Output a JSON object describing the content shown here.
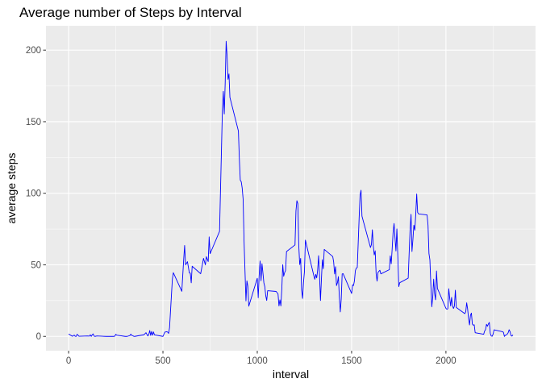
{
  "chart_data": {
    "type": "line",
    "title": "Average number of Steps by Interval",
    "xlabel": "interval",
    "ylabel": "average steps",
    "xlim": [
      -120,
      2475
    ],
    "ylim": [
      -10,
      217
    ],
    "x_ticks": [
      0,
      500,
      1000,
      1500,
      2000
    ],
    "y_ticks": [
      0,
      50,
      100,
      150,
      200
    ],
    "x_tick_labels": [
      "0",
      "500",
      "1000",
      "1500",
      "2000"
    ],
    "y_tick_labels": [
      "0",
      "50",
      "100",
      "150",
      "200"
    ],
    "grid": true,
    "panel_background": "#ebebeb",
    "series": [
      {
        "color": "#0000ff",
        "points": [
          [
            0,
            1.7
          ],
          [
            20,
            0.1
          ],
          [
            30,
            0.9
          ],
          [
            35,
            0.1
          ],
          [
            40,
            0.0
          ],
          [
            45,
            1.5
          ],
          [
            55,
            0.1
          ],
          [
            100,
            0.3
          ],
          [
            110,
            0.2
          ],
          [
            115,
            1.1
          ],
          [
            120,
            0.0
          ],
          [
            125,
            1.1
          ],
          [
            130,
            1.8
          ],
          [
            135,
            0.2
          ],
          [
            140,
            0.0
          ],
          [
            150,
            0.3
          ],
          [
            200,
            0.0
          ],
          [
            230,
            0.0
          ],
          [
            240,
            0.0
          ],
          [
            245,
            0.2
          ],
          [
            250,
            1.5
          ],
          [
            255,
            0.9
          ],
          [
            300,
            0.0
          ],
          [
            310,
            0.0
          ],
          [
            325,
            0.6
          ],
          [
            330,
            1.6
          ],
          [
            335,
            0.6
          ],
          [
            340,
            0.5
          ],
          [
            345,
            0.1
          ],
          [
            350,
            0.0
          ],
          [
            400,
            1.2
          ],
          [
            410,
            2.6
          ],
          [
            420,
            0.3
          ],
          [
            425,
            1.4
          ],
          [
            430,
            4.1
          ],
          [
            435,
            0.7
          ],
          [
            440,
            3.5
          ],
          [
            445,
            0.8
          ],
          [
            450,
            3.1
          ],
          [
            455,
            1.1
          ],
          [
            500,
            0.0
          ],
          [
            510,
            3.0
          ],
          [
            520,
            3.3
          ],
          [
            525,
            3.0
          ],
          [
            530,
            2.1
          ],
          [
            535,
            6.1
          ],
          [
            550,
            40.0
          ],
          [
            555,
            44.5
          ],
          [
            600,
            31.5
          ],
          [
            610,
            53.8
          ],
          [
            615,
            63.5
          ],
          [
            620,
            50.0
          ],
          [
            630,
            52.2
          ],
          [
            640,
            44.3
          ],
          [
            645,
            44.2
          ],
          [
            650,
            37.4
          ],
          [
            655,
            49.0
          ],
          [
            700,
            43.8
          ],
          [
            715,
            54.5
          ],
          [
            725,
            50.0
          ],
          [
            730,
            55.7
          ],
          [
            740,
            52.3
          ],
          [
            745,
            69.5
          ],
          [
            750,
            57.8
          ],
          [
            800,
            73.4
          ],
          [
            810,
            129.4
          ],
          [
            815,
            157.5
          ],
          [
            820,
            171.2
          ],
          [
            825,
            155.4
          ],
          [
            830,
            177.3
          ],
          [
            835,
            206.2
          ],
          [
            840,
            195.9
          ],
          [
            845,
            179.6
          ],
          [
            850,
            183.4
          ],
          [
            855,
            167.0
          ],
          [
            900,
            143.5
          ],
          [
            905,
            124.0
          ],
          [
            910,
            109.1
          ],
          [
            915,
            108.1
          ],
          [
            920,
            103.7
          ],
          [
            925,
            95.9
          ],
          [
            930,
            66.2
          ],
          [
            935,
            45.2
          ],
          [
            940,
            24.8
          ],
          [
            945,
            38.8
          ],
          [
            950,
            35.0
          ],
          [
            955,
            21.1
          ],
          [
            1000,
            40.6
          ],
          [
            1005,
            27.0
          ],
          [
            1010,
            42.4
          ],
          [
            1015,
            52.7
          ],
          [
            1020,
            38.9
          ],
          [
            1025,
            50.8
          ],
          [
            1030,
            44.3
          ],
          [
            1035,
            37.4
          ],
          [
            1040,
            34.7
          ],
          [
            1045,
            28.3
          ],
          [
            1050,
            25.1
          ],
          [
            1055,
            31.9
          ],
          [
            1100,
            31.4
          ],
          [
            1110,
            29.7
          ],
          [
            1115,
            21.3
          ],
          [
            1120,
            25.5
          ],
          [
            1125,
            21.3
          ],
          [
            1130,
            32.8
          ],
          [
            1135,
            50.1
          ],
          [
            1140,
            42.0
          ],
          [
            1145,
            44.6
          ],
          [
            1150,
            46.0
          ],
          [
            1155,
            59.3
          ],
          [
            1200,
            63.9
          ],
          [
            1205,
            87.6
          ],
          [
            1210,
            94.8
          ],
          [
            1215,
            92.8
          ],
          [
            1220,
            63.4
          ],
          [
            1225,
            50.2
          ],
          [
            1230,
            54.5
          ],
          [
            1235,
            32.4
          ],
          [
            1240,
            26.5
          ],
          [
            1245,
            37.7
          ],
          [
            1250,
            45.1
          ],
          [
            1255,
            67.3
          ],
          [
            1300,
            42.3
          ],
          [
            1305,
            39.9
          ],
          [
            1310,
            43.3
          ],
          [
            1315,
            40.9
          ],
          [
            1320,
            46.2
          ],
          [
            1325,
            56.4
          ],
          [
            1330,
            42.8
          ],
          [
            1335,
            25.1
          ],
          [
            1340,
            39.9
          ],
          [
            1345,
            53.6
          ],
          [
            1350,
            47.3
          ],
          [
            1355,
            60.8
          ],
          [
            1400,
            55.8
          ],
          [
            1405,
            51.9
          ],
          [
            1410,
            43.6
          ],
          [
            1415,
            48.7
          ],
          [
            1420,
            35.5
          ],
          [
            1425,
            37.5
          ],
          [
            1430,
            41.8
          ],
          [
            1435,
            27.5
          ],
          [
            1440,
            17.1
          ],
          [
            1445,
            26.1
          ],
          [
            1450,
            43.6
          ],
          [
            1455,
            43.8
          ],
          [
            1500,
            30.0
          ],
          [
            1505,
            36.1
          ],
          [
            1510,
            35.5
          ],
          [
            1515,
            38.8
          ],
          [
            1520,
            45.9
          ],
          [
            1525,
            47.8
          ],
          [
            1530,
            48.1
          ],
          [
            1535,
            65.3
          ],
          [
            1540,
            82.9
          ],
          [
            1545,
            98.7
          ],
          [
            1550,
            102.1
          ],
          [
            1555,
            84.0
          ],
          [
            1600,
            62.1
          ],
          [
            1605,
            64.1
          ],
          [
            1610,
            74.5
          ],
          [
            1615,
            63.2
          ],
          [
            1620,
            56.9
          ],
          [
            1625,
            59.8
          ],
          [
            1630,
            43.9
          ],
          [
            1635,
            38.6
          ],
          [
            1640,
            44.7
          ],
          [
            1645,
            45.5
          ],
          [
            1650,
            46.2
          ],
          [
            1655,
            43.7
          ],
          [
            1700,
            46.6
          ],
          [
            1705,
            56.3
          ],
          [
            1710,
            50.7
          ],
          [
            1715,
            61.2
          ],
          [
            1720,
            72.7
          ],
          [
            1725,
            78.9
          ],
          [
            1730,
            68.9
          ],
          [
            1735,
            59.7
          ],
          [
            1740,
            75.1
          ],
          [
            1745,
            56.5
          ],
          [
            1750,
            34.8
          ],
          [
            1755,
            37.5
          ],
          [
            1800,
            40.7
          ],
          [
            1805,
            58.0
          ],
          [
            1810,
            74.7
          ],
          [
            1815,
            85.3
          ],
          [
            1820,
            59.3
          ],
          [
            1825,
            67.8
          ],
          [
            1830,
            77.7
          ],
          [
            1835,
            74.2
          ],
          [
            1840,
            85.3
          ],
          [
            1845,
            99.5
          ],
          [
            1850,
            86.6
          ],
          [
            1855,
            85.6
          ],
          [
            1900,
            84.9
          ],
          [
            1905,
            77.8
          ],
          [
            1910,
            58.0
          ],
          [
            1915,
            53.4
          ],
          [
            1920,
            36.3
          ],
          [
            1925,
            20.7
          ],
          [
            1930,
            27.4
          ],
          [
            1935,
            40.0
          ],
          [
            1940,
            30.2
          ],
          [
            1945,
            25.5
          ],
          [
            1950,
            45.7
          ],
          [
            1955,
            33.5
          ],
          [
            2000,
            19.6
          ],
          [
            2005,
            19.0
          ],
          [
            2010,
            19.3
          ],
          [
            2015,
            33.3
          ],
          [
            2020,
            26.8
          ],
          [
            2025,
            21.2
          ],
          [
            2030,
            27.3
          ],
          [
            2035,
            21.3
          ],
          [
            2040,
            19.5
          ],
          [
            2045,
            21.3
          ],
          [
            2050,
            32.3
          ],
          [
            2055,
            20.2
          ],
          [
            2100,
            15.9
          ],
          [
            2105,
            17.2
          ],
          [
            2110,
            23.5
          ],
          [
            2115,
            19.2
          ],
          [
            2120,
            12.5
          ],
          [
            2125,
            8.0
          ],
          [
            2130,
            14.7
          ],
          [
            2135,
            16.3
          ],
          [
            2140,
            8.7
          ],
          [
            2145,
            7.8
          ],
          [
            2150,
            8.1
          ],
          [
            2155,
            2.6
          ],
          [
            2200,
            1.5
          ],
          [
            2205,
            3.7
          ],
          [
            2210,
            4.8
          ],
          [
            2215,
            8.5
          ],
          [
            2220,
            7.1
          ],
          [
            2225,
            8.7
          ],
          [
            2230,
            9.8
          ],
          [
            2235,
            2.2
          ],
          [
            2240,
            0.3
          ],
          [
            2245,
            0.1
          ],
          [
            2250,
            1.6
          ],
          [
            2255,
            4.6
          ],
          [
            2300,
            3.3
          ],
          [
            2305,
            2.8
          ],
          [
            2310,
            0.0
          ],
          [
            2315,
            0.8
          ],
          [
            2320,
            1.0
          ],
          [
            2325,
            1.6
          ],
          [
            2330,
            2.6
          ],
          [
            2335,
            4.7
          ],
          [
            2340,
            3.3
          ],
          [
            2345,
            0.6
          ],
          [
            2350,
            0.2
          ],
          [
            2355,
            1.1
          ]
        ]
      }
    ]
  }
}
